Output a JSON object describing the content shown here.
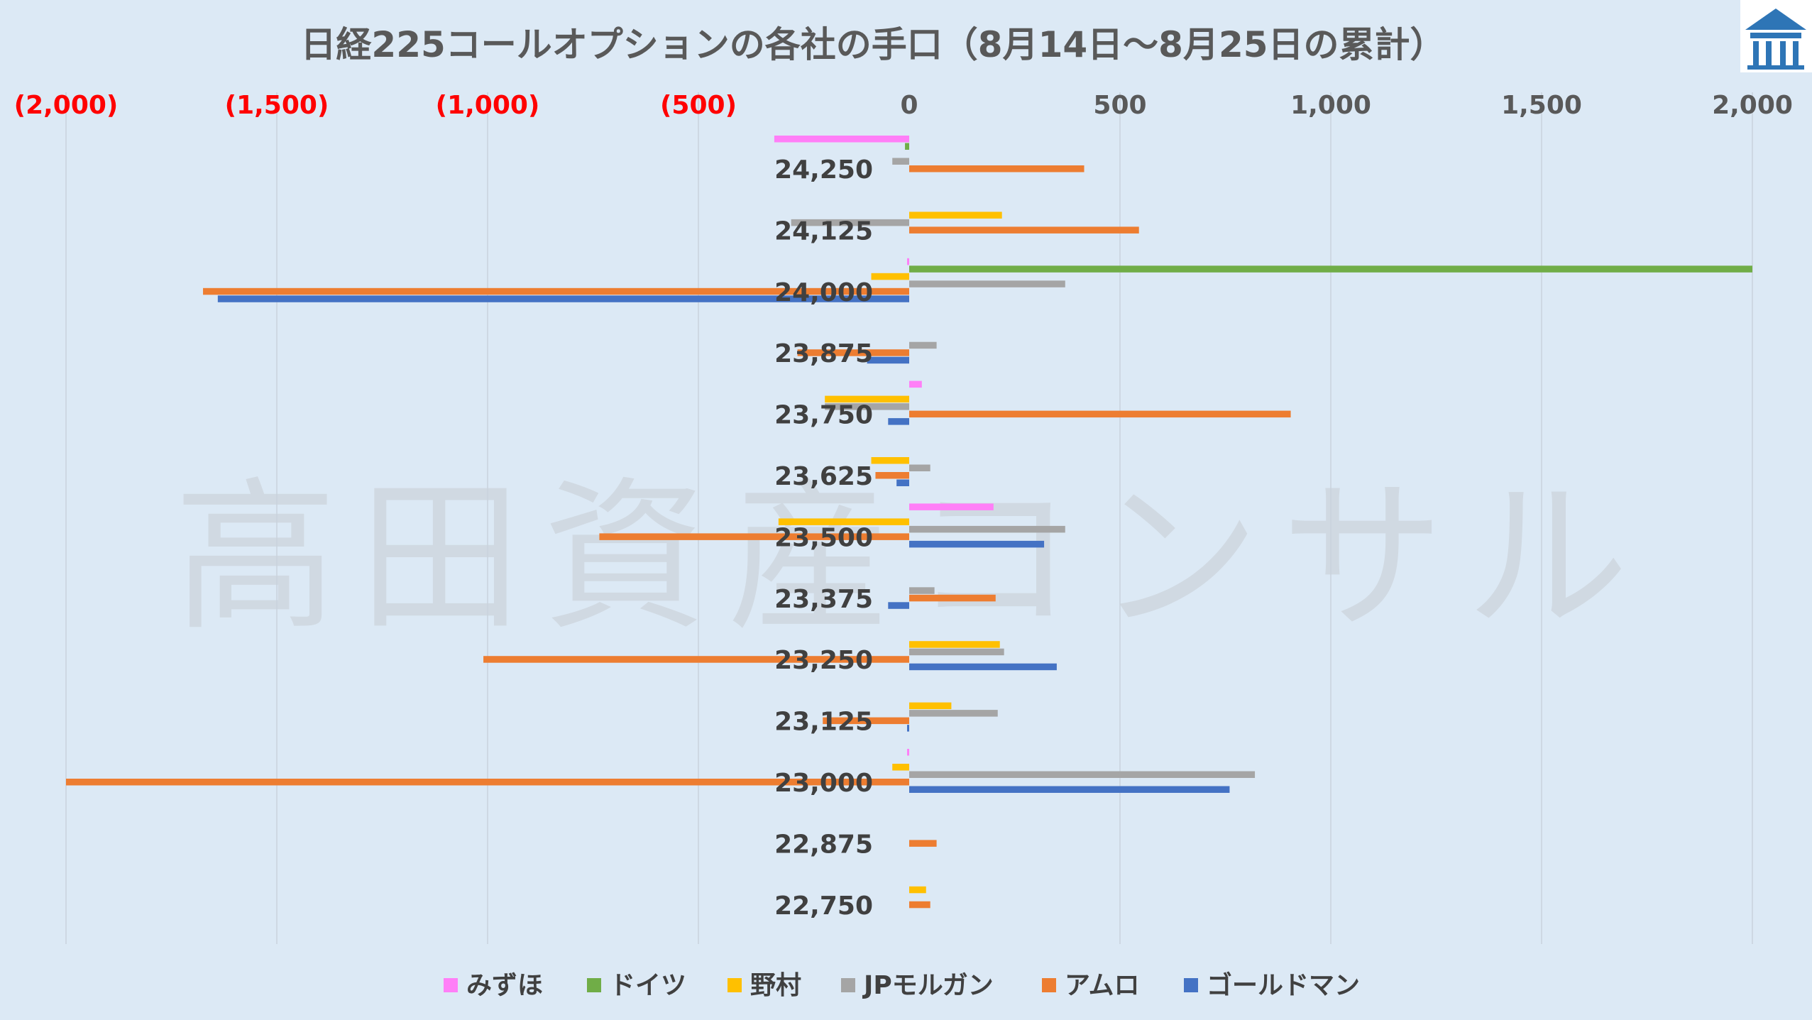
{
  "watermark": "高田資産コンサル",
  "chart_data": {
    "type": "bar",
    "orientation": "horizontal",
    "title": "日経225コールオプションの各社の手口（8月14日～8月25日の累計）",
    "xlim": [
      -2000,
      2000
    ],
    "x_ticks": [
      -2000,
      -1500,
      -1000,
      -500,
      0,
      500,
      1000,
      1500,
      2000
    ],
    "x_tick_labels": [
      "(2,000)",
      "(1,500)",
      "(1,000)",
      "(500)",
      "0",
      "500",
      "1,000",
      "1,500",
      "2,000"
    ],
    "negative_tick_color": "#ff0000",
    "positive_tick_color": "#595959",
    "categories": [
      "24,250",
      "24,125",
      "24,000",
      "23,875",
      "23,750",
      "23,625",
      "23,500",
      "23,375",
      "23,250",
      "23,125",
      "23,000",
      "22,875",
      "22,750"
    ],
    "series": [
      {
        "name": "みずほ",
        "color": "#ff7ff7",
        "values": [
          -320,
          0,
          -5,
          0,
          30,
          0,
          200,
          0,
          0,
          0,
          -5,
          0,
          0
        ]
      },
      {
        "name": "ドイツ",
        "color": "#70ad47",
        "values": [
          -10,
          0,
          2000,
          0,
          0,
          0,
          0,
          0,
          0,
          0,
          0,
          0,
          0
        ]
      },
      {
        "name": "野村",
        "color": "#ffc000",
        "values": [
          0,
          220,
          -90,
          0,
          -200,
          -90,
          -310,
          0,
          215,
          100,
          -40,
          0,
          40
        ]
      },
      {
        "name": "JPモルガン",
        "color": "#a5a5a5",
        "values": [
          -40,
          -280,
          370,
          65,
          -200,
          50,
          370,
          60,
          225,
          210,
          820,
          0,
          0
        ]
      },
      {
        "name": "アムロ",
        "color": "#ed7d31",
        "values": [
          415,
          545,
          -1675,
          -265,
          905,
          -80,
          -735,
          205,
          -1010,
          -205,
          -2000,
          65,
          50
        ]
      },
      {
        "name": "ゴールドマン",
        "color": "#4472c4",
        "values": [
          0,
          0,
          -1640,
          -100,
          -50,
          -30,
          320,
          -50,
          350,
          -5,
          760,
          0,
          0
        ]
      }
    ],
    "grid": true,
    "legend_position": "bottom"
  }
}
